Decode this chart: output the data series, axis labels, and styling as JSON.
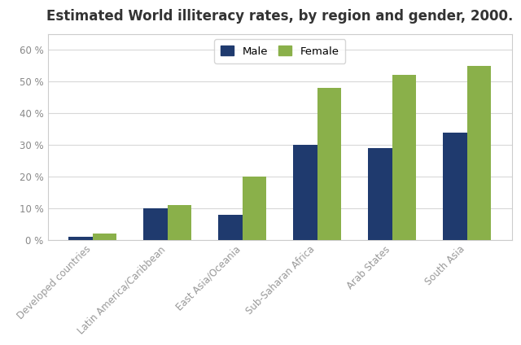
{
  "title": "Estimated World illiteracy rates, by region and gender, 2000.",
  "categories": [
    "Developed countries",
    "Latin America/Caribbean",
    "East Asia/Oceania",
    "Sub-Saharan Africa",
    "Arab States",
    "South Asia"
  ],
  "male_values": [
    1,
    10,
    8,
    30,
    29,
    34
  ],
  "female_values": [
    2,
    11,
    20,
    48,
    52,
    55
  ],
  "male_color": "#1f3a6e",
  "female_color": "#8ab04a",
  "ylim": [
    0,
    65
  ],
  "yticks": [
    0,
    10,
    20,
    30,
    40,
    50,
    60
  ],
  "ytick_labels": [
    "0 %",
    "10 %",
    "20 %",
    "30 %",
    "40 %",
    "50 %",
    "60 %"
  ],
  "legend_labels": [
    "Male",
    "Female"
  ],
  "background_color": "#ffffff",
  "plot_bg_color": "#ffffff",
  "grid_color": "#d8d8d8",
  "title_fontsize": 12,
  "tick_fontsize": 8.5,
  "legend_fontsize": 9.5,
  "bar_width": 0.32
}
